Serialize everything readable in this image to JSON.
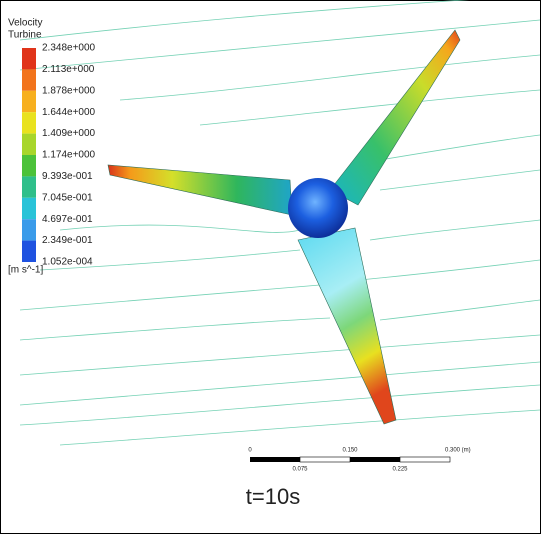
{
  "legend": {
    "title": "Velocity",
    "subtitle": "Turbine",
    "labels": [
      "2.348e+000",
      "2.113e+000",
      "1.878e+000",
      "1.644e+000",
      "1.409e+000",
      "1.174e+000",
      "9.393e-001",
      "7.045e-001",
      "4.697e-001",
      "2.349e-001",
      "1.052e-004"
    ],
    "unit": "[m s^-1]"
  },
  "scale_bar": {
    "top_labels": [
      "0",
      "0.150",
      "0.300 (m)"
    ],
    "bottom_labels": [
      "0.075",
      "0.225"
    ]
  },
  "caption": "t=10s"
}
